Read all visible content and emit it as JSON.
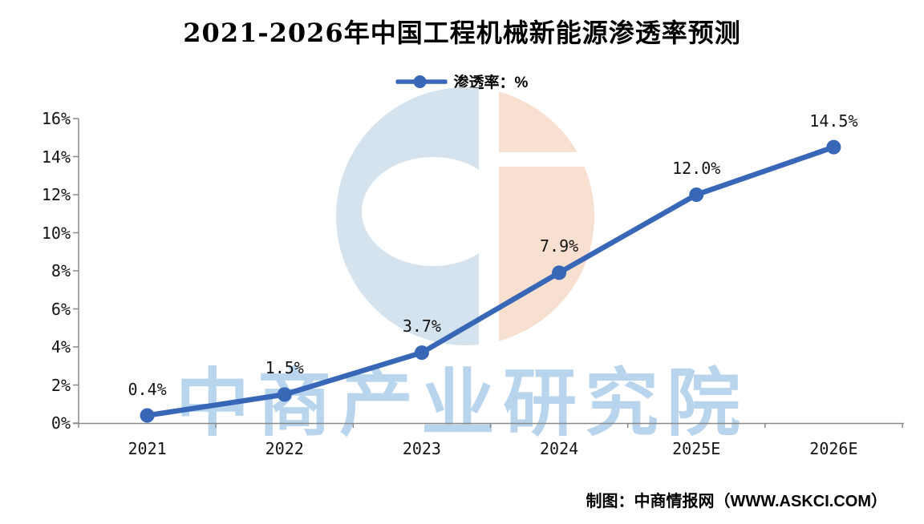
{
  "title": "2021-2026年中国工程机械新能源渗透率预测",
  "legend": {
    "label": "渗透率：%"
  },
  "footer": {
    "credit": "制图：中商情报网（WWW.ASKCI.COM）"
  },
  "watermark": {
    "text": "中商产业研究院"
  },
  "colors": {
    "line": "#3767b6",
    "axis": "#8a8a8a",
    "watermark_blue": "#d5e3ef",
    "watermark_peach": "#f8e0d0",
    "watermark_text": "#b9d5ee",
    "label_text": "#141414"
  },
  "chart_data": {
    "type": "line",
    "title": "2021-2026年中国工程机械新能源渗透率预测",
    "categories": [
      "2021",
      "2022",
      "2023",
      "2024",
      "2025E",
      "2026E"
    ],
    "series": [
      {
        "name": "渗透率：%",
        "values": [
          0.4,
          1.5,
          3.7,
          7.9,
          12.0,
          14.5
        ]
      }
    ],
    "data_labels": [
      "0.4%",
      "1.5%",
      "3.7%",
      "7.9%",
      "12.0%",
      "14.5%"
    ],
    "y_ticks": [
      "0%",
      "2%",
      "4%",
      "6%",
      "8%",
      "10%",
      "12%",
      "14%",
      "16%"
    ],
    "ylim": [
      0,
      16
    ],
    "y_tick_step": 2,
    "xlabel": "",
    "ylabel": "",
    "grid": false,
    "legend_position": "top-center"
  }
}
